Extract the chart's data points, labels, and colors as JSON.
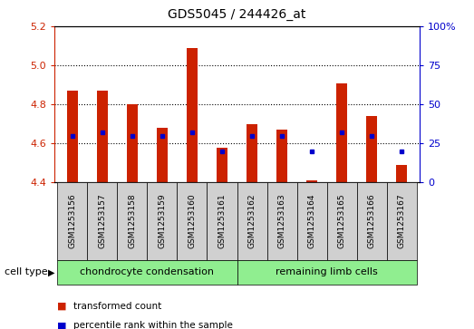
{
  "title": "GDS5045 / 244426_at",
  "samples": [
    "GSM1253156",
    "GSM1253157",
    "GSM1253158",
    "GSM1253159",
    "GSM1253160",
    "GSM1253161",
    "GSM1253162",
    "GSM1253163",
    "GSM1253164",
    "GSM1253165",
    "GSM1253166",
    "GSM1253167"
  ],
  "transformed_count": [
    4.87,
    4.87,
    4.8,
    4.68,
    5.09,
    4.58,
    4.7,
    4.67,
    4.41,
    4.91,
    4.74,
    4.49
  ],
  "percentile_rank": [
    30,
    32,
    30,
    30,
    32,
    20,
    30,
    30,
    20,
    32,
    30,
    20
  ],
  "ylim_left": [
    4.4,
    5.2
  ],
  "ylim_right": [
    0,
    100
  ],
  "yticks_left": [
    4.4,
    4.6,
    4.8,
    5.0,
    5.2
  ],
  "yticks_right": [
    0,
    25,
    50,
    75,
    100
  ],
  "bar_color": "#cc2200",
  "dot_color": "#0000cc",
  "bar_bottom": 4.4,
  "group1_label": "chondrocyte condensation",
  "group2_label": "remaining limb cells",
  "group_color": "#90ee90",
  "cell_type_label": "cell type",
  "legend_items": [
    {
      "label": "transformed count",
      "color": "#cc2200"
    },
    {
      "label": "percentile rank within the sample",
      "color": "#0000cc"
    }
  ],
  "sample_box_color": "#d0d0d0",
  "bar_width": 0.35
}
